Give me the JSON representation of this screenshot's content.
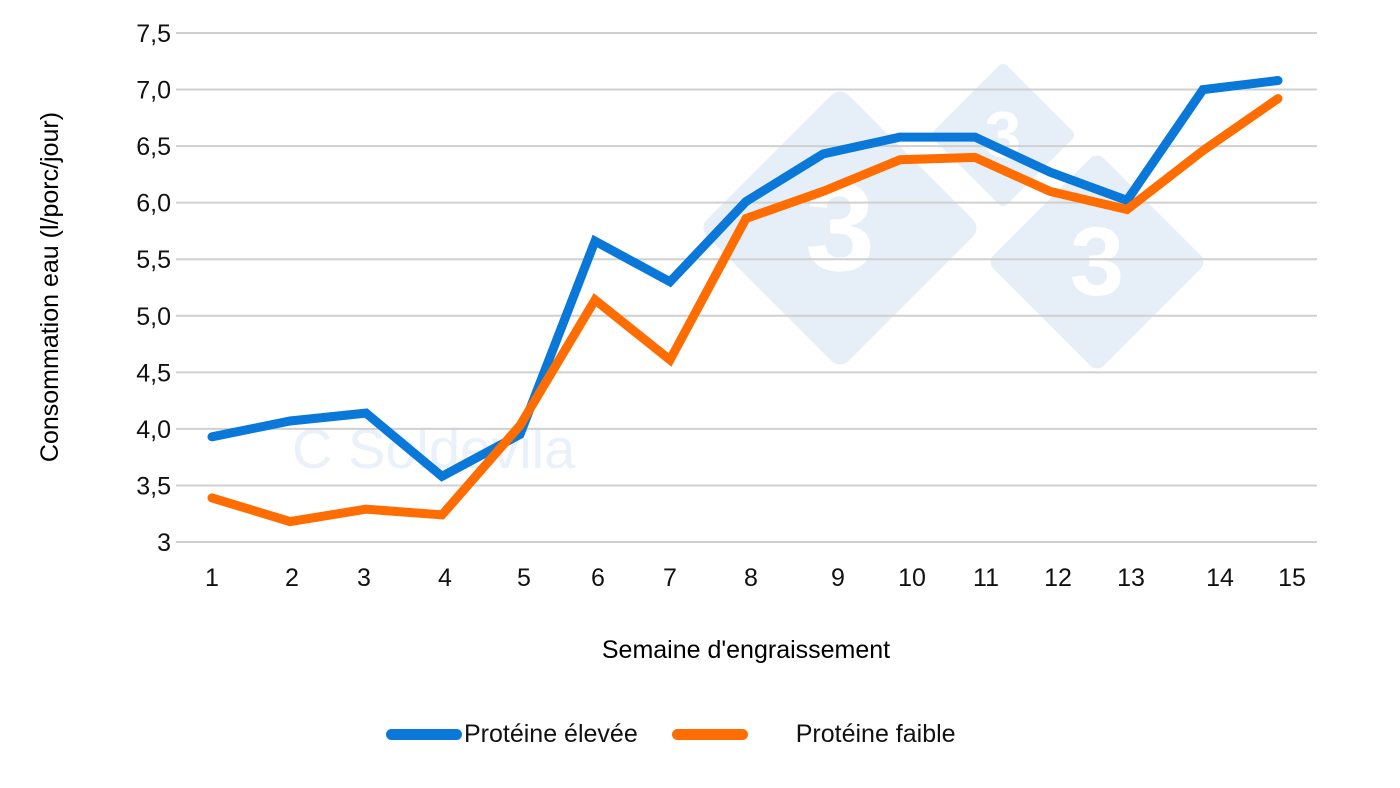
{
  "chart_data": {
    "type": "line",
    "title": "",
    "xlabel": "Semaine d'engraissement",
    "ylabel": "Consommation eau (l/porc/jour)",
    "categories": [
      "1",
      "2",
      "3",
      "4",
      "5",
      "6",
      "7",
      "8",
      "9",
      "10",
      "11",
      "12",
      "13",
      "14",
      "15"
    ],
    "y_ticks": [
      "3",
      "3,5",
      "4,0",
      "4,5",
      "5,0",
      "5,5",
      "6,0",
      "6,5",
      "7,0",
      "7,5"
    ],
    "ylim": [
      3,
      7.5
    ],
    "grid": true,
    "legend_position": "bottom",
    "series": [
      {
        "name": "Protéine élevée",
        "color": "#0a78d8",
        "values": [
          3.93,
          4.07,
          4.14,
          3.58,
          3.95,
          5.66,
          5.3,
          6.01,
          6.43,
          6.58,
          6.58,
          6.27,
          6.02,
          7.0,
          7.08
        ]
      },
      {
        "name": "Protéine faible",
        "color": "#ff6d00",
        "values": [
          3.39,
          3.18,
          3.29,
          3.24,
          4.03,
          5.14,
          4.61,
          5.86,
          6.1,
          6.38,
          6.4,
          6.1,
          5.94,
          6.46,
          6.92
        ]
      }
    ]
  },
  "watermark": {
    "text": "C Soldevila",
    "logo_glyph": "3",
    "color": "#e6eff8"
  },
  "legend": {
    "items": [
      {
        "label": "Protéine élevée",
        "color": "#0a78d8"
      },
      {
        "label": "Protéine faible",
        "color": "#ff6d00"
      }
    ]
  }
}
